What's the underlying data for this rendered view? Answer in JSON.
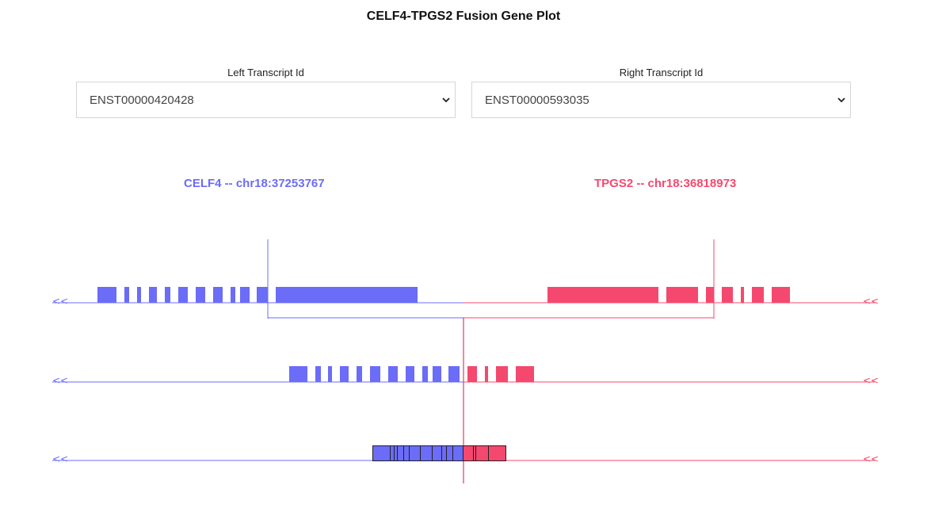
{
  "title": "CELF4-TPGS2 Fusion Gene Plot",
  "left_transcript": {
    "label": "Left Transcript Id",
    "value": "ENST00000420428"
  },
  "right_transcript": {
    "label": "Right Transcript Id",
    "value": "ENST00000593035"
  },
  "left_gene": {
    "label": "CELF4 -- chr18:37253767",
    "color": "#6b6cf7"
  },
  "right_gene": {
    "label": "TPGS2 -- chr18:36818973",
    "color": "#f5486e"
  },
  "strand_marker": "<<",
  "icons": {
    "dropdown": "chevron-down-icon"
  }
}
